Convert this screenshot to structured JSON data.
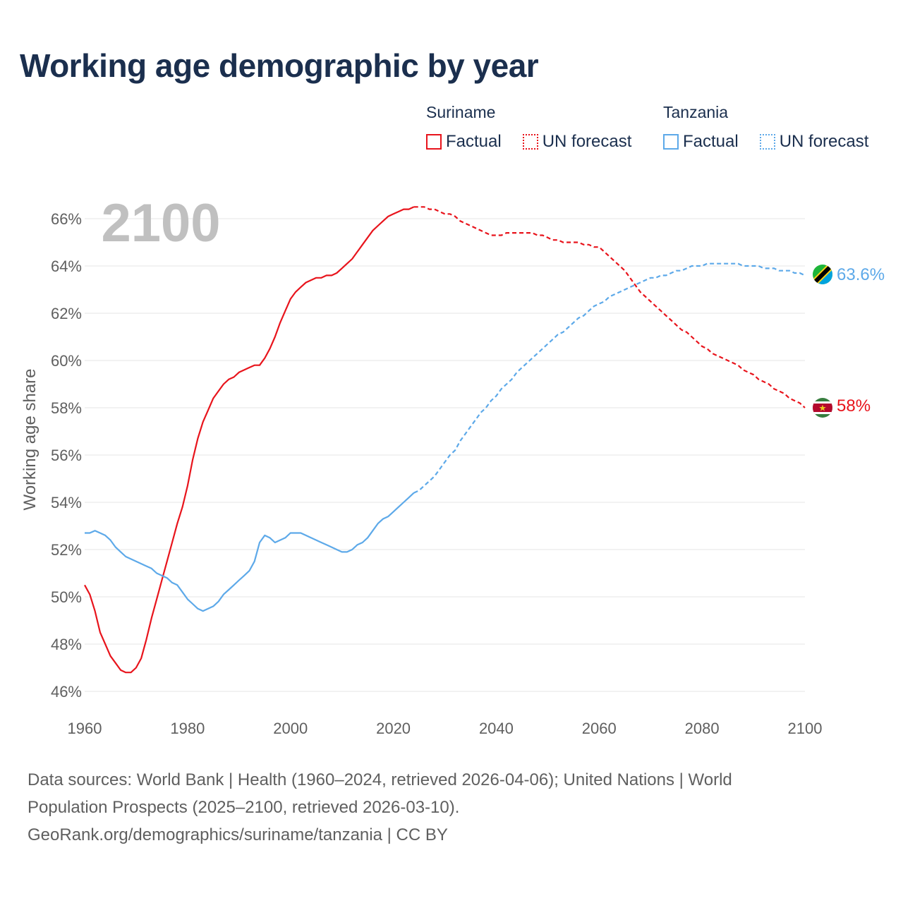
{
  "title": "Working age demographic by year",
  "legend": {
    "groups": [
      {
        "name": "Suriname",
        "factual_label": "Factual",
        "forecast_label": "UN forecast",
        "color": "#e8141c"
      },
      {
        "name": "Tanzania",
        "factual_label": "Factual",
        "forecast_label": "UN forecast",
        "color": "#5da9e9"
      }
    ]
  },
  "footer": {
    "line1": "Data sources: World Bank | Health (1960–2024, retrieved 2026-04-06); United Nations | World",
    "line2": "Population Prospects (2025–2100, retrieved 2026-03-10).",
    "line3": "GeoRank.org/demographics/suriname/tanzania | CC BY"
  },
  "chart_data": {
    "type": "line",
    "title": "Working age demographic by year",
    "xlabel": "",
    "ylabel": "Working age share",
    "year_label": "2100",
    "xlim": [
      1960,
      2100
    ],
    "ylim": [
      45,
      67
    ],
    "x_ticks": [
      1960,
      1980,
      2000,
      2020,
      2040,
      2060,
      2080,
      2100
    ],
    "y_ticks": [
      46,
      48,
      50,
      52,
      54,
      56,
      58,
      60,
      62,
      64,
      66
    ],
    "y_tick_labels": [
      "46%",
      "48%",
      "50%",
      "52%",
      "54%",
      "56%",
      "58%",
      "60%",
      "62%",
      "64%",
      "66%"
    ],
    "grid": true,
    "factual_end_year": 2024,
    "series": [
      {
        "name": "Suriname",
        "color": "#e8141c",
        "end_label": "58%",
        "flag": "suriname",
        "points": [
          [
            1960,
            50.5
          ],
          [
            1961,
            50.1
          ],
          [
            1962,
            49.4
          ],
          [
            1963,
            48.5
          ],
          [
            1964,
            48.0
          ],
          [
            1965,
            47.5
          ],
          [
            1966,
            47.2
          ],
          [
            1967,
            46.9
          ],
          [
            1968,
            46.8
          ],
          [
            1969,
            46.8
          ],
          [
            1970,
            47.0
          ],
          [
            1971,
            47.4
          ],
          [
            1972,
            48.2
          ],
          [
            1973,
            49.1
          ],
          [
            1974,
            49.9
          ],
          [
            1975,
            50.7
          ],
          [
            1976,
            51.5
          ],
          [
            1977,
            52.3
          ],
          [
            1978,
            53.1
          ],
          [
            1979,
            53.8
          ],
          [
            1980,
            54.7
          ],
          [
            1981,
            55.8
          ],
          [
            1982,
            56.7
          ],
          [
            1983,
            57.4
          ],
          [
            1984,
            57.9
          ],
          [
            1985,
            58.4
          ],
          [
            1986,
            58.7
          ],
          [
            1987,
            59.0
          ],
          [
            1988,
            59.2
          ],
          [
            1989,
            59.3
          ],
          [
            1990,
            59.5
          ],
          [
            1991,
            59.6
          ],
          [
            1992,
            59.7
          ],
          [
            1993,
            59.8
          ],
          [
            1994,
            59.8
          ],
          [
            1995,
            60.1
          ],
          [
            1996,
            60.5
          ],
          [
            1997,
            61.0
          ],
          [
            1998,
            61.6
          ],
          [
            1999,
            62.1
          ],
          [
            2000,
            62.6
          ],
          [
            2001,
            62.9
          ],
          [
            2002,
            63.1
          ],
          [
            2003,
            63.3
          ],
          [
            2004,
            63.4
          ],
          [
            2005,
            63.5
          ],
          [
            2006,
            63.5
          ],
          [
            2007,
            63.6
          ],
          [
            2008,
            63.6
          ],
          [
            2009,
            63.7
          ],
          [
            2010,
            63.9
          ],
          [
            2011,
            64.1
          ],
          [
            2012,
            64.3
          ],
          [
            2013,
            64.6
          ],
          [
            2014,
            64.9
          ],
          [
            2015,
            65.2
          ],
          [
            2016,
            65.5
          ],
          [
            2017,
            65.7
          ],
          [
            2018,
            65.9
          ],
          [
            2019,
            66.1
          ],
          [
            2020,
            66.2
          ],
          [
            2021,
            66.3
          ],
          [
            2022,
            66.4
          ],
          [
            2023,
            66.4
          ],
          [
            2024,
            66.5
          ],
          [
            2025,
            66.5
          ],
          [
            2026,
            66.5
          ],
          [
            2027,
            66.4
          ],
          [
            2028,
            66.4
          ],
          [
            2029,
            66.3
          ],
          [
            2030,
            66.2
          ],
          [
            2031,
            66.2
          ],
          [
            2032,
            66.1
          ],
          [
            2033,
            65.9
          ],
          [
            2034,
            65.8
          ],
          [
            2035,
            65.7
          ],
          [
            2036,
            65.6
          ],
          [
            2037,
            65.5
          ],
          [
            2038,
            65.4
          ],
          [
            2039,
            65.3
          ],
          [
            2040,
            65.3
          ],
          [
            2041,
            65.3
          ],
          [
            2042,
            65.4
          ],
          [
            2043,
            65.4
          ],
          [
            2044,
            65.4
          ],
          [
            2045,
            65.4
          ],
          [
            2046,
            65.4
          ],
          [
            2047,
            65.4
          ],
          [
            2048,
            65.3
          ],
          [
            2049,
            65.3
          ],
          [
            2050,
            65.2
          ],
          [
            2051,
            65.1
          ],
          [
            2052,
            65.1
          ],
          [
            2053,
            65.0
          ],
          [
            2054,
            65.0
          ],
          [
            2055,
            65.0
          ],
          [
            2056,
            65.0
          ],
          [
            2057,
            64.9
          ],
          [
            2058,
            64.9
          ],
          [
            2059,
            64.8
          ],
          [
            2060,
            64.8
          ],
          [
            2061,
            64.6
          ],
          [
            2062,
            64.4
          ],
          [
            2063,
            64.2
          ],
          [
            2064,
            64.0
          ],
          [
            2065,
            63.8
          ],
          [
            2066,
            63.5
          ],
          [
            2067,
            63.2
          ],
          [
            2068,
            62.9
          ],
          [
            2069,
            62.7
          ],
          [
            2070,
            62.5
          ],
          [
            2071,
            62.3
          ],
          [
            2072,
            62.1
          ],
          [
            2073,
            61.9
          ],
          [
            2074,
            61.7
          ],
          [
            2075,
            61.5
          ],
          [
            2076,
            61.3
          ],
          [
            2077,
            61.2
          ],
          [
            2078,
            61.0
          ],
          [
            2079,
            60.8
          ],
          [
            2080,
            60.6
          ],
          [
            2081,
            60.5
          ],
          [
            2082,
            60.3
          ],
          [
            2083,
            60.2
          ],
          [
            2084,
            60.1
          ],
          [
            2085,
            60.0
          ],
          [
            2086,
            59.9
          ],
          [
            2087,
            59.8
          ],
          [
            2088,
            59.6
          ],
          [
            2089,
            59.5
          ],
          [
            2090,
            59.4
          ],
          [
            2091,
            59.2
          ],
          [
            2092,
            59.1
          ],
          [
            2093,
            59.0
          ],
          [
            2094,
            58.8
          ],
          [
            2095,
            58.7
          ],
          [
            2096,
            58.6
          ],
          [
            2097,
            58.4
          ],
          [
            2098,
            58.3
          ],
          [
            2099,
            58.2
          ],
          [
            2100,
            58.0
          ]
        ]
      },
      {
        "name": "Tanzania",
        "color": "#5da9e9",
        "end_label": "63.6%",
        "flag": "tanzania",
        "points": [
          [
            1960,
            52.7
          ],
          [
            1961,
            52.7
          ],
          [
            1962,
            52.8
          ],
          [
            1963,
            52.7
          ],
          [
            1964,
            52.6
          ],
          [
            1965,
            52.4
          ],
          [
            1966,
            52.1
          ],
          [
            1967,
            51.9
          ],
          [
            1968,
            51.7
          ],
          [
            1969,
            51.6
          ],
          [
            1970,
            51.5
          ],
          [
            1971,
            51.4
          ],
          [
            1972,
            51.3
          ],
          [
            1973,
            51.2
          ],
          [
            1974,
            51.0
          ],
          [
            1975,
            50.9
          ],
          [
            1976,
            50.8
          ],
          [
            1977,
            50.6
          ],
          [
            1978,
            50.5
          ],
          [
            1979,
            50.2
          ],
          [
            1980,
            49.9
          ],
          [
            1981,
            49.7
          ],
          [
            1982,
            49.5
          ],
          [
            1983,
            49.4
          ],
          [
            1984,
            49.5
          ],
          [
            1985,
            49.6
          ],
          [
            1986,
            49.8
          ],
          [
            1987,
            50.1
          ],
          [
            1988,
            50.3
          ],
          [
            1989,
            50.5
          ],
          [
            1990,
            50.7
          ],
          [
            1991,
            50.9
          ],
          [
            1992,
            51.1
          ],
          [
            1993,
            51.5
          ],
          [
            1994,
            52.3
          ],
          [
            1995,
            52.6
          ],
          [
            1996,
            52.5
          ],
          [
            1997,
            52.3
          ],
          [
            1998,
            52.4
          ],
          [
            1999,
            52.5
          ],
          [
            2000,
            52.7
          ],
          [
            2001,
            52.7
          ],
          [
            2002,
            52.7
          ],
          [
            2003,
            52.6
          ],
          [
            2004,
            52.5
          ],
          [
            2005,
            52.4
          ],
          [
            2006,
            52.3
          ],
          [
            2007,
            52.2
          ],
          [
            2008,
            52.1
          ],
          [
            2009,
            52.0
          ],
          [
            2010,
            51.9
          ],
          [
            2011,
            51.9
          ],
          [
            2012,
            52.0
          ],
          [
            2013,
            52.2
          ],
          [
            2014,
            52.3
          ],
          [
            2015,
            52.5
          ],
          [
            2016,
            52.8
          ],
          [
            2017,
            53.1
          ],
          [
            2018,
            53.3
          ],
          [
            2019,
            53.4
          ],
          [
            2020,
            53.6
          ],
          [
            2021,
            53.8
          ],
          [
            2022,
            54.0
          ],
          [
            2023,
            54.2
          ],
          [
            2024,
            54.4
          ],
          [
            2025,
            54.5
          ],
          [
            2026,
            54.7
          ],
          [
            2027,
            54.9
          ],
          [
            2028,
            55.1
          ],
          [
            2029,
            55.4
          ],
          [
            2030,
            55.7
          ],
          [
            2031,
            56.0
          ],
          [
            2032,
            56.2
          ],
          [
            2033,
            56.6
          ],
          [
            2034,
            56.9
          ],
          [
            2035,
            57.2
          ],
          [
            2036,
            57.5
          ],
          [
            2037,
            57.8
          ],
          [
            2038,
            58.0
          ],
          [
            2039,
            58.3
          ],
          [
            2040,
            58.5
          ],
          [
            2041,
            58.8
          ],
          [
            2042,
            59.0
          ],
          [
            2043,
            59.2
          ],
          [
            2044,
            59.5
          ],
          [
            2045,
            59.7
          ],
          [
            2046,
            59.9
          ],
          [
            2047,
            60.1
          ],
          [
            2048,
            60.3
          ],
          [
            2049,
            60.5
          ],
          [
            2050,
            60.7
          ],
          [
            2051,
            60.9
          ],
          [
            2052,
            61.1
          ],
          [
            2053,
            61.2
          ],
          [
            2054,
            61.4
          ],
          [
            2055,
            61.6
          ],
          [
            2056,
            61.8
          ],
          [
            2057,
            61.9
          ],
          [
            2058,
            62.1
          ],
          [
            2059,
            62.3
          ],
          [
            2060,
            62.4
          ],
          [
            2061,
            62.5
          ],
          [
            2062,
            62.7
          ],
          [
            2063,
            62.8
          ],
          [
            2064,
            62.9
          ],
          [
            2065,
            63.0
          ],
          [
            2066,
            63.1
          ],
          [
            2067,
            63.2
          ],
          [
            2068,
            63.3
          ],
          [
            2069,
            63.4
          ],
          [
            2070,
            63.5
          ],
          [
            2071,
            63.5
          ],
          [
            2072,
            63.6
          ],
          [
            2073,
            63.6
          ],
          [
            2074,
            63.7
          ],
          [
            2075,
            63.8
          ],
          [
            2076,
            63.8
          ],
          [
            2077,
            63.9
          ],
          [
            2078,
            64.0
          ],
          [
            2079,
            64.0
          ],
          [
            2080,
            64.0
          ],
          [
            2081,
            64.1
          ],
          [
            2082,
            64.1
          ],
          [
            2083,
            64.1
          ],
          [
            2084,
            64.1
          ],
          [
            2085,
            64.1
          ],
          [
            2086,
            64.1
          ],
          [
            2087,
            64.1
          ],
          [
            2088,
            64.0
          ],
          [
            2089,
            64.0
          ],
          [
            2090,
            64.0
          ],
          [
            2091,
            64.0
          ],
          [
            2092,
            63.9
          ],
          [
            2093,
            63.9
          ],
          [
            2094,
            63.9
          ],
          [
            2095,
            63.8
          ],
          [
            2096,
            63.8
          ],
          [
            2097,
            63.8
          ],
          [
            2098,
            63.7
          ],
          [
            2099,
            63.7
          ],
          [
            2100,
            63.6
          ]
        ]
      }
    ]
  }
}
